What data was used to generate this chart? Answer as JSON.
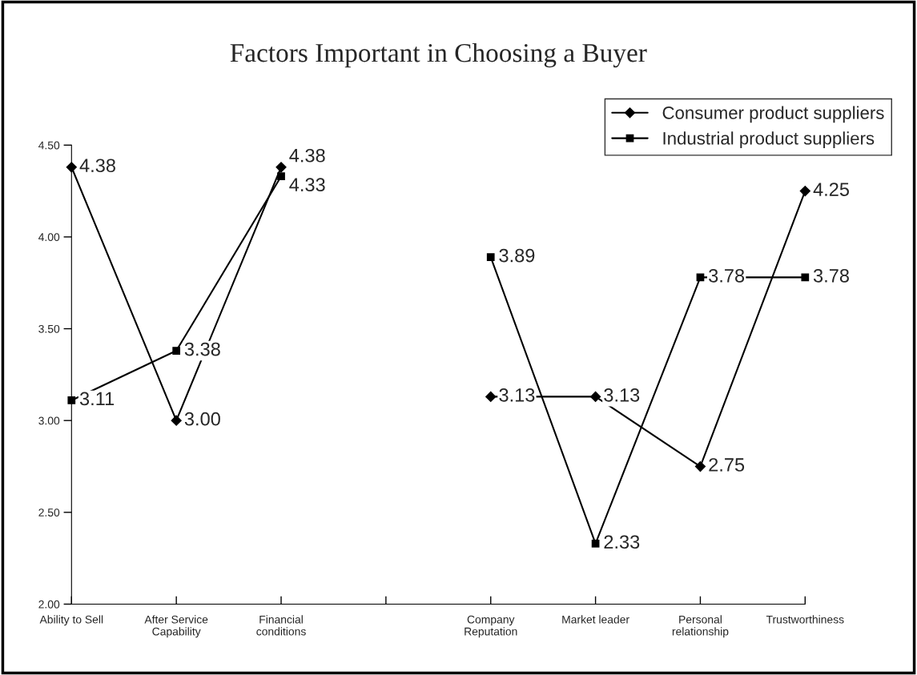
{
  "chart_data": {
    "type": "line",
    "title": "Factors Important in Choosing a Buyer",
    "categories": [
      "Ability to Sell",
      "After Service\nCapability",
      "Financial\nconditions",
      null,
      "Company\nReputation",
      "Market leader",
      "Personal\nrelationship",
      "Trustworthiness"
    ],
    "series": [
      {
        "name": "Consumer product suppliers",
        "color": "#000000",
        "marker": "diamond",
        "values": [
          4.38,
          3.0,
          4.38,
          null,
          3.13,
          3.13,
          2.75,
          4.25
        ],
        "value_labels": [
          "4.38",
          "3.00",
          "4.38",
          null,
          "3.13",
          "3.13",
          "2.75",
          "4.25"
        ]
      },
      {
        "name": "Industrial product suppliers",
        "color": "#000000",
        "marker": "square",
        "values": [
          3.11,
          3.38,
          4.33,
          null,
          3.89,
          2.33,
          3.78,
          3.78
        ],
        "value_labels": [
          "3.11",
          "3.38",
          "4.33",
          null,
          "3.89",
          "2.33",
          "3.78",
          "3.78"
        ]
      }
    ],
    "ylim": [
      2.0,
      4.5
    ],
    "yticks": [
      {
        "value": 2.0,
        "label": "2.00"
      },
      {
        "value": 2.5,
        "label": "2.50"
      },
      {
        "value": 3.0,
        "label": "3.00"
      },
      {
        "value": 3.5,
        "label": "3.50"
      },
      {
        "value": 4.0,
        "label": "4.00"
      },
      {
        "value": 4.5,
        "label": "4.50"
      }
    ],
    "grid": false,
    "legend": "top right",
    "line_style": "solid"
  }
}
